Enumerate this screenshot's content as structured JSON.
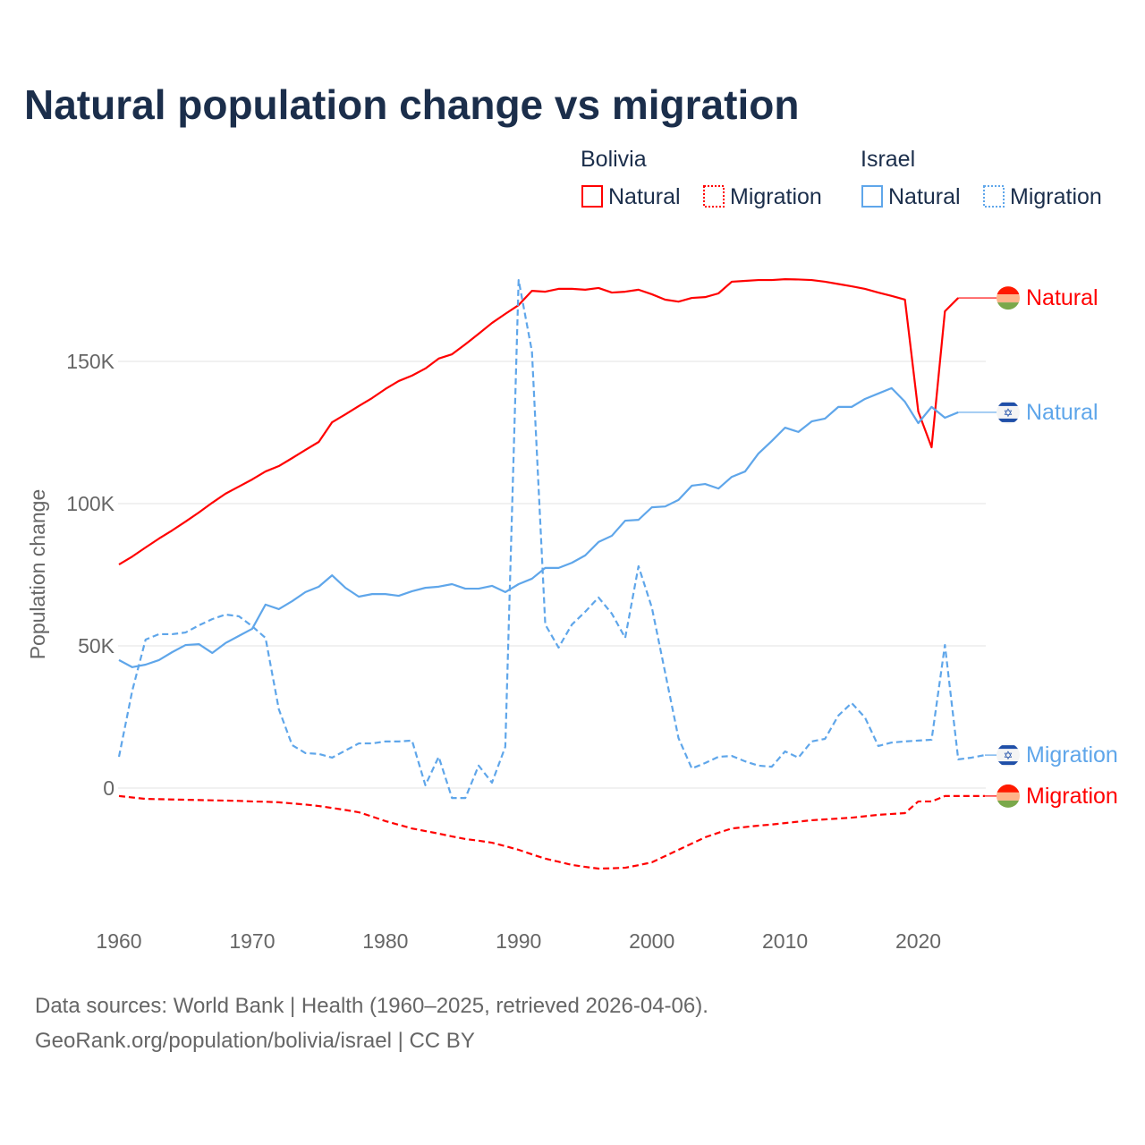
{
  "chart_data": {
    "type": "line",
    "title": "Natural population change vs migration",
    "xlabel": "",
    "ylabel": "Population change",
    "xlim": [
      1960,
      2025
    ],
    "ylim": [
      -40000,
      185000
    ],
    "x_ticks": [
      1960,
      1970,
      1980,
      1990,
      2000,
      2010,
      2020
    ],
    "x_tick_labels": [
      "1960",
      "1970",
      "1980",
      "1990",
      "2000",
      "2010",
      "2020"
    ],
    "y_ticks": [
      0,
      50000,
      100000,
      150000
    ],
    "y_tick_labels": [
      "0",
      "50K",
      "100K",
      "150K"
    ],
    "grid": true,
    "legend": {
      "placement": "top-right",
      "groups": [
        {
          "name": "Bolivia",
          "entries": [
            "Natural",
            "Migration"
          ],
          "color": "#ff0000"
        },
        {
          "name": "Israel",
          "entries": [
            "Natural",
            "Migration"
          ],
          "color": "#5fa6ea"
        }
      ]
    },
    "series": [
      {
        "name": "Bolivia Natural",
        "country": "Bolivia",
        "kind": "Natural",
        "end_label": "Natural",
        "color": "#ff0000",
        "dash": false,
        "x_start": 1960,
        "values": [
          78600,
          81400,
          84600,
          87700,
          90600,
          93700,
          96900,
          100300,
          103500,
          106000,
          108500,
          111300,
          113200,
          116000,
          118900,
          121700,
          128600,
          131400,
          134300,
          137100,
          140300,
          143100,
          145000,
          147500,
          151000,
          152500,
          156000,
          159700,
          163500,
          166700,
          169800,
          174800,
          174500,
          175500,
          175500,
          175200,
          175800,
          174200,
          174500,
          175200,
          173600,
          171700,
          171000,
          172300,
          172600,
          173900,
          178000,
          178300,
          178600,
          178600,
          178900,
          178800,
          178600,
          178000,
          177200,
          176400,
          175500,
          174200,
          173000,
          171700,
          132400,
          119800,
          167600,
          172300
        ]
      },
      {
        "name": "Bolivia Migration",
        "country": "Bolivia",
        "kind": "Migration",
        "end_label": "Migration",
        "color": "#ff0000",
        "dash": true,
        "x_start": 1960,
        "values": [
          -2800,
          -3300,
          -3800,
          -3900,
          -4000,
          -4100,
          -4200,
          -4300,
          -4400,
          -4500,
          -4700,
          -4800,
          -5000,
          -5400,
          -5800,
          -6300,
          -7000,
          -7700,
          -8500,
          -10000,
          -11600,
          -12900,
          -14200,
          -15100,
          -16000,
          -17000,
          -17900,
          -18500,
          -19200,
          -20400,
          -21700,
          -23300,
          -24800,
          -25900,
          -27000,
          -27700,
          -28300,
          -28200,
          -28000,
          -27100,
          -26100,
          -23900,
          -21700,
          -19500,
          -17300,
          -15700,
          -14200,
          -13700,
          -13200,
          -12800,
          -12300,
          -11800,
          -11300,
          -11000,
          -10700,
          -10400,
          -9900,
          -9400,
          -9100,
          -8800,
          -4700,
          -4700,
          -2800,
          -2800,
          -2800,
          -2800
        ]
      },
      {
        "name": "Israel Natural",
        "country": "Israel",
        "kind": "Natural",
        "end_label": "Natural",
        "color": "#5fa6ea",
        "dash": false,
        "x_start": 1960,
        "values": [
          45000,
          42500,
          43400,
          45000,
          47800,
          50300,
          50600,
          47500,
          51000,
          53500,
          56000,
          64500,
          62900,
          65700,
          68900,
          70800,
          74800,
          70400,
          67300,
          68200,
          68200,
          67600,
          69200,
          70400,
          70800,
          71700,
          70100,
          70100,
          71100,
          68900,
          71700,
          73600,
          77400,
          77400,
          79200,
          81800,
          86500,
          88700,
          94000,
          94300,
          98700,
          99000,
          101300,
          106300,
          106900,
          105300,
          109400,
          111300,
          117600,
          122000,
          126700,
          125200,
          128900,
          129900,
          134000,
          134000,
          136800,
          138700,
          140600,
          135800,
          128300,
          134000,
          130200,
          132100
        ]
      },
      {
        "name": "Israel Migration",
        "country": "Israel",
        "kind": "Migration",
        "end_label": "Migration",
        "color": "#5fa6ea",
        "dash": true,
        "x_start": 1960,
        "values": [
          11000,
          34300,
          52200,
          54100,
          54100,
          54700,
          57200,
          59400,
          61000,
          60400,
          56900,
          52800,
          27700,
          15100,
          12300,
          12000,
          10700,
          13200,
          15700,
          15700,
          16400,
          16400,
          16700,
          1000,
          11000,
          -3500,
          -3500,
          7900,
          1900,
          14500,
          178600,
          153500,
          57500,
          49400,
          57500,
          62000,
          67000,
          61300,
          52800,
          78000,
          63500,
          40600,
          17600,
          6900,
          8800,
          11000,
          11300,
          9400,
          7900,
          7500,
          12900,
          10700,
          16400,
          17300,
          25500,
          29900,
          24800,
          14800,
          16000,
          16400,
          16700,
          17000,
          50300,
          10100,
          10700,
          11600
        ]
      }
    ]
  },
  "footer": {
    "line1": "Data sources: World Bank | Health (1960–2025, retrieved 2026-04-06).",
    "line2": "GeoRank.org/population/bolivia/israel | CC BY"
  }
}
